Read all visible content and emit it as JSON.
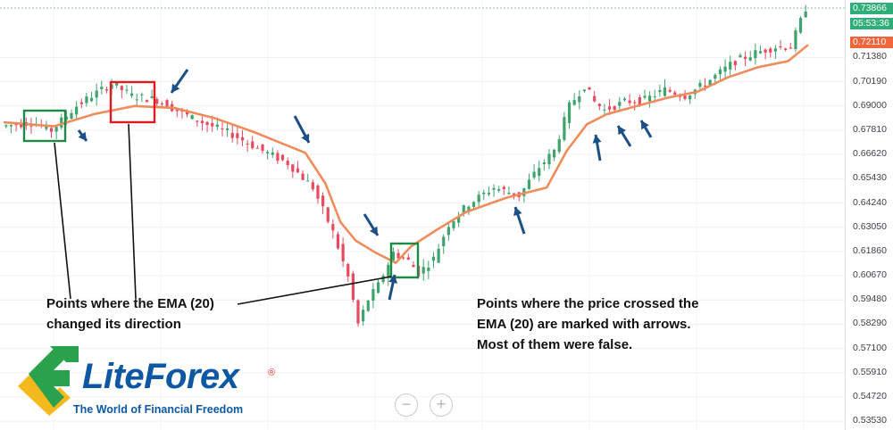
{
  "chart_data": {
    "type": "candlestick",
    "indicator": "EMA (20)",
    "ylim": [
      0.531,
      0.742
    ],
    "y_ticks": [
      "0.71380",
      "0.70190",
      "0.69000",
      "0.67810",
      "0.66620",
      "0.65430",
      "0.64240",
      "0.63050",
      "0.61860",
      "0.60670",
      "0.59480",
      "0.58290",
      "0.57100",
      "0.55910",
      "0.54720",
      "0.53530"
    ],
    "y_tick_values": [
      0.7138,
      0.7019,
      0.69,
      0.6781,
      0.6662,
      0.6543,
      0.6424,
      0.6305,
      0.6186,
      0.6067,
      0.5948,
      0.5829,
      0.571,
      0.5591,
      0.5472,
      0.5353
    ],
    "current_price": "0.73866",
    "countdown": "05:53:36",
    "ema_price": "0.72110",
    "price_path": [
      [
        0,
        0.68
      ],
      [
        6,
        0.682
      ],
      [
        10,
        0.678
      ],
      [
        15,
        0.69
      ],
      [
        18,
        0.695
      ],
      [
        22,
        0.701
      ],
      [
        26,
        0.695
      ],
      [
        31,
        0.693
      ],
      [
        38,
        0.684
      ],
      [
        46,
        0.676
      ],
      [
        52,
        0.668
      ],
      [
        57,
        0.662
      ],
      [
        62,
        0.65
      ],
      [
        66,
        0.628
      ],
      [
        69,
        0.606
      ],
      [
        71,
        0.583
      ],
      [
        73,
        0.595
      ],
      [
        75,
        0.602
      ],
      [
        78,
        0.618
      ],
      [
        81,
        0.614
      ],
      [
        83,
        0.608
      ],
      [
        86,
        0.615
      ],
      [
        89,
        0.632
      ],
      [
        93,
        0.642
      ],
      [
        98,
        0.65
      ],
      [
        103,
        0.646
      ],
      [
        107,
        0.66
      ],
      [
        110,
        0.668
      ],
      [
        113,
        0.69
      ],
      [
        116,
        0.7
      ],
      [
        118,
        0.692
      ],
      [
        120,
        0.688
      ],
      [
        124,
        0.692
      ],
      [
        128,
        0.693
      ],
      [
        132,
        0.698
      ],
      [
        136,
        0.695
      ],
      [
        140,
        0.701
      ],
      [
        146,
        0.712
      ],
      [
        150,
        0.716
      ],
      [
        154,
        0.719
      ],
      [
        157,
        0.719
      ],
      [
        160,
        0.738
      ]
    ],
    "ema_path": [
      [
        0,
        0.682
      ],
      [
        10,
        0.68
      ],
      [
        18,
        0.686
      ],
      [
        26,
        0.69
      ],
      [
        34,
        0.689
      ],
      [
        42,
        0.684
      ],
      [
        50,
        0.677
      ],
      [
        56,
        0.671
      ],
      [
        60,
        0.667
      ],
      [
        64,
        0.652
      ],
      [
        67,
        0.633
      ],
      [
        70,
        0.624
      ],
      [
        74,
        0.618
      ],
      [
        78,
        0.613
      ],
      [
        81,
        0.621
      ],
      [
        86,
        0.629
      ],
      [
        92,
        0.638
      ],
      [
        100,
        0.645
      ],
      [
        108,
        0.65
      ],
      [
        112,
        0.668
      ],
      [
        116,
        0.681
      ],
      [
        120,
        0.686
      ],
      [
        126,
        0.69
      ],
      [
        132,
        0.694
      ],
      [
        138,
        0.697
      ],
      [
        144,
        0.704
      ],
      [
        150,
        0.709
      ],
      [
        156,
        0.712
      ],
      [
        160,
        0.72
      ]
    ],
    "ema_color": "#f08c5c",
    "bull_color": "#3fa36d",
    "bear_color": "#e84a5f",
    "arrow_color": "#1c4f86",
    "green_box_color": "#1f8a45",
    "red_box_color": "#e11a21"
  },
  "annotations": {
    "left_line1": "Points where the EMA (20)",
    "left_line2": "changed its direction",
    "right_line1": "Points where the price crossed the",
    "right_line2": "EMA (20) are marked with arrows.",
    "right_line3": "Most of them were false."
  },
  "logo": {
    "name": "LiteForex",
    "registered": "®",
    "slogan": "The World of Financial Freedom"
  },
  "zoom": {
    "minus": "−",
    "plus": "+"
  }
}
